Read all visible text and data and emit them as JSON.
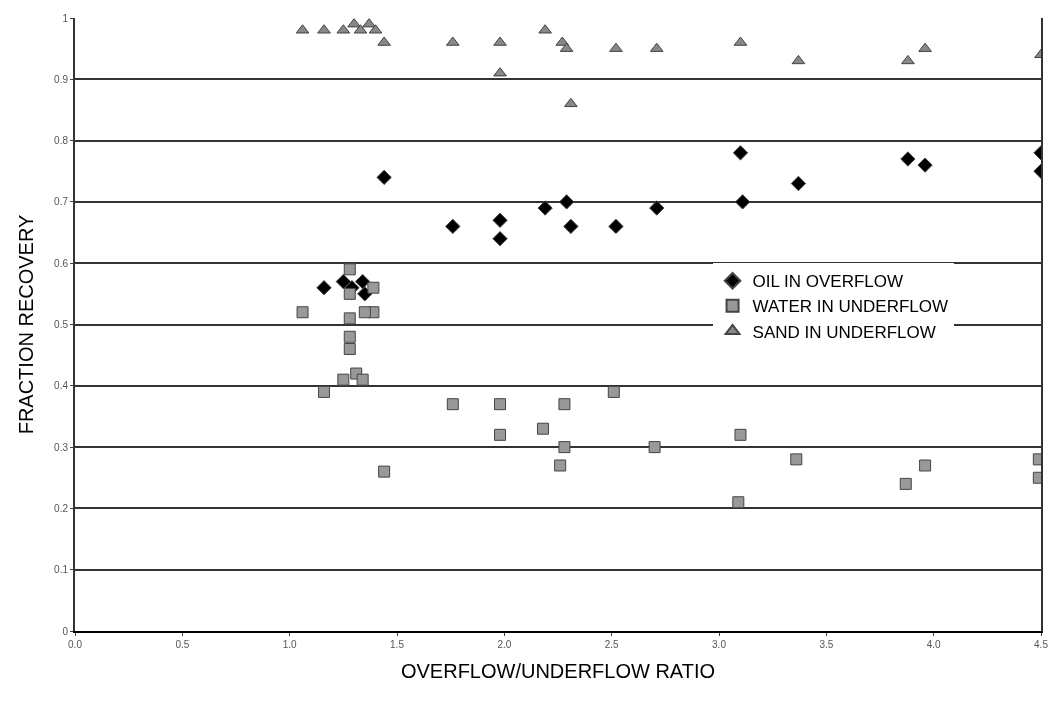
{
  "chart_data": {
    "type": "scatter",
    "xlabel": "OVERFLOW/UNDERFLOW RATIO",
    "ylabel": "FRACTION RECOVERY",
    "xlim": [
      0,
      4.5
    ],
    "xticks": [
      {
        "value": 0,
        "label": "0.0"
      },
      {
        "value": 0.5,
        "label": "0.5"
      },
      {
        "value": 1,
        "label": "1.0"
      },
      {
        "value": 1.5,
        "label": "1.5"
      },
      {
        "value": 2,
        "label": "2.0"
      },
      {
        "value": 2.5,
        "label": "2.5"
      },
      {
        "value": 3,
        "label": "3.0"
      },
      {
        "value": 3.5,
        "label": "3.5"
      },
      {
        "value": 4,
        "label": "4.0"
      },
      {
        "value": 4.5,
        "label": "4.5"
      }
    ],
    "ylim": [
      0,
      1
    ],
    "yticks": [
      0,
      0.1,
      0.2,
      0.3,
      0.4,
      0.5,
      0.6,
      0.7,
      0.8,
      0.9,
      1
    ],
    "grid": "y",
    "legend": "right",
    "series": [
      {
        "name": "OIL IN OVERFLOW",
        "color": "#000000",
        "marker": "diamond",
        "x": [
          1.44,
          1.76,
          1.98,
          1.98,
          1.16,
          1.25,
          1.29,
          1.32,
          1.35,
          1.34,
          2.19,
          2.27,
          2.29,
          2.31,
          2.52,
          2.71,
          3.1,
          3.11,
          3.37,
          3.88,
          3.96,
          4.5,
          4.5
        ],
        "values": [
          0.74,
          0.66,
          0.67,
          0.64,
          0.56,
          0.57,
          0.56,
          null,
          0.55,
          0.57,
          0.69,
          null,
          0.7,
          0.66,
          0.66,
          0.69,
          0.78,
          0.7,
          0.73,
          0.77,
          0.76,
          0.78,
          0.75
        ]
      },
      {
        "name": "WATER IN UNDERFLOW",
        "color": "#999999",
        "marker": "square",
        "x": [
          1.06,
          1.16,
          1.28,
          1.28,
          1.28,
          1.28,
          1.28,
          1.25,
          1.31,
          1.34,
          1.39,
          1.39,
          1.35,
          1.44,
          1.76,
          1.98,
          1.98,
          2.18,
          2.28,
          2.28,
          2.26,
          2.51,
          2.7,
          3.1,
          3.09,
          3.36,
          3.87,
          3.96,
          4.49,
          4.49
        ],
        "values": [
          0.52,
          0.39,
          0.59,
          0.55,
          0.51,
          0.48,
          0.46,
          0.41,
          0.42,
          0.41,
          0.56,
          0.52,
          0.52,
          0.26,
          0.37,
          0.37,
          0.32,
          0.33,
          0.37,
          0.3,
          0.27,
          0.39,
          0.3,
          0.32,
          0.21,
          0.28,
          0.24,
          0.27,
          0.28,
          0.25
        ]
      },
      {
        "name": "SAND IN UNDERFLOW",
        "color": "#888888",
        "marker": "triangle",
        "x": [
          1.06,
          1.16,
          1.25,
          1.3,
          1.33,
          1.37,
          1.4,
          1.44,
          1.76,
          1.98,
          1.98,
          2.19,
          2.27,
          2.29,
          2.31,
          2.52,
          2.71,
          3.1,
          3.37,
          3.88,
          3.96,
          4.5
        ],
        "values": [
          0.98,
          0.98,
          0.98,
          0.99,
          0.98,
          0.99,
          0.98,
          0.96,
          0.96,
          0.96,
          0.91,
          0.98,
          0.96,
          0.95,
          0.86,
          0.95,
          0.95,
          0.96,
          0.93,
          0.93,
          0.95,
          0.94
        ]
      }
    ]
  }
}
